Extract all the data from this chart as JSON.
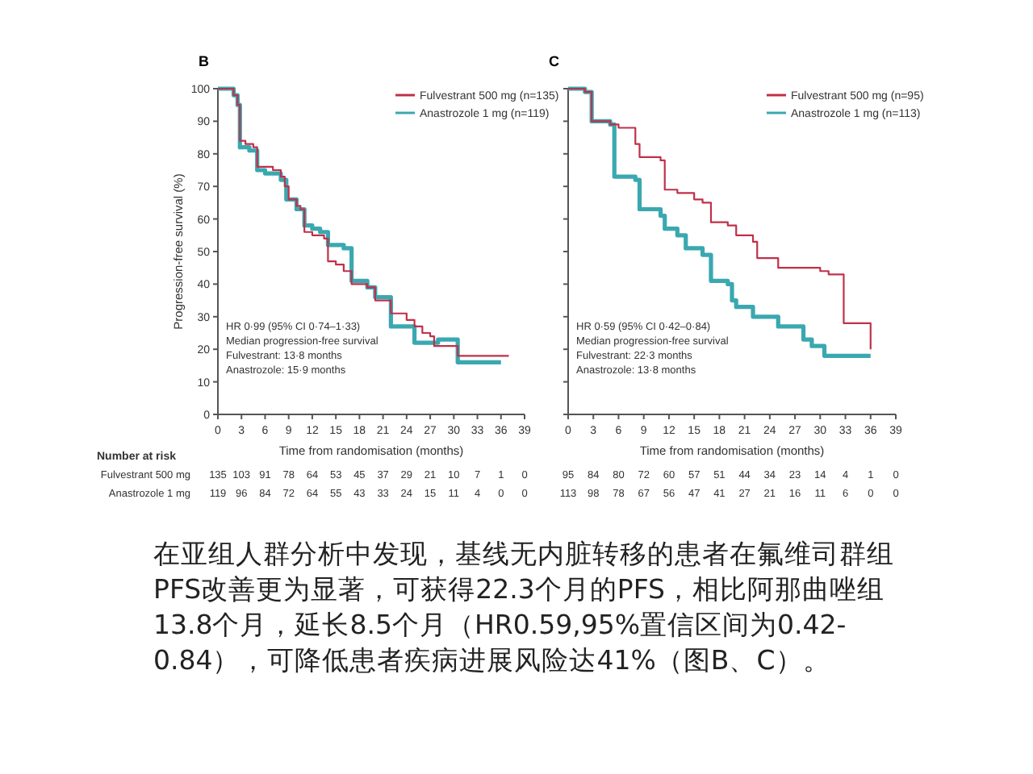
{
  "chart_data": [
    {
      "type": "step",
      "title": "B",
      "xlabel": "Time from randomisation (months)",
      "ylabel": "Progression-free survival (%)",
      "xlim": [
        0,
        39
      ],
      "xticks": [
        0,
        3,
        6,
        9,
        12,
        15,
        18,
        21,
        24,
        27,
        30,
        33,
        36,
        39
      ],
      "ylim": [
        0,
        100
      ],
      "yticks": [
        0,
        10,
        20,
        30,
        40,
        50,
        60,
        70,
        80,
        90,
        100
      ],
      "legend": "top right",
      "grid": false,
      "series": [
        {
          "name": "Fulvestrant 500 mg (n=135)",
          "color": "#c0304a",
          "x": [
            0,
            1.5,
            2,
            2.5,
            2.8,
            3.5,
            4.5,
            5,
            7,
            8,
            8.5,
            9,
            10,
            10.5,
            11,
            12,
            13.5,
            14,
            15,
            16,
            17,
            19,
            20,
            22,
            24,
            25,
            26,
            27,
            27.5,
            30.5,
            37
          ],
          "values": [
            100,
            100,
            98,
            95,
            84,
            83,
            82,
            76,
            75,
            73,
            70,
            66,
            64,
            63,
            56,
            55,
            54,
            47,
            46,
            44,
            40,
            39,
            35,
            31,
            29,
            27,
            25,
            24,
            21,
            18,
            18
          ]
        },
        {
          "name": "Anastrozole 1 mg (n=119)",
          "color": "#3aa8b0",
          "x": [
            0,
            2,
            2.5,
            2.8,
            4,
            5,
            6,
            8,
            8.7,
            10,
            11,
            12,
            13,
            14,
            16,
            17,
            19,
            20,
            22,
            25,
            27,
            28,
            30.5,
            36
          ],
          "values": [
            100,
            98,
            95,
            82,
            81,
            75,
            74,
            72,
            66,
            63,
            58,
            57,
            56,
            52,
            51,
            41,
            39,
            36,
            27,
            22,
            22,
            23,
            16,
            16
          ]
        }
      ],
      "annotations": [
        "HR 0·99 (95% CI 0·74–1·33)",
        "Median progression-free survival",
        "Fulvestrant: 13·8 months",
        "Anastrozole: 15·9 months",
        "Number at risk",
        "Fulvestrant 500 mg",
        "Anastrozole 1 mg",
        "135 103 91 78 64 53 45 37 29 21 10 7 1 0",
        "119 96 84 72 64 55 43 33 24 15 11 4 0 0"
      ]
    },
    {
      "type": "step",
      "title": "C",
      "xlabel": "Time from randomisation (months)",
      "xlim": [
        0,
        39
      ],
      "xticks": [
        0,
        3,
        6,
        9,
        12,
        15,
        18,
        21,
        24,
        27,
        30,
        33,
        36,
        39
      ],
      "ylim": [
        0,
        100
      ],
      "yticks": [
        0,
        10,
        20,
        30,
        40,
        50,
        60,
        70,
        80,
        90,
        100
      ],
      "tick_labels": "x",
      "legend": "top right",
      "grid": false,
      "series": [
        {
          "name": "Fulvestrant 500 mg (n=95)",
          "color": "#c0304a",
          "x": [
            0,
            2,
            2.8,
            5,
            6,
            8,
            8.5,
            11,
            11.5,
            13,
            15,
            16,
            17,
            19,
            20,
            22,
            22.5,
            25,
            30,
            31,
            32.8,
            36
          ],
          "values": [
            100,
            99,
            90,
            89,
            88,
            83,
            79,
            78,
            69,
            68,
            66,
            65,
            59,
            58,
            55,
            53,
            48,
            45,
            44,
            43,
            28,
            20
          ]
        },
        {
          "name": "Anastrozole 1 mg (n=113)",
          "color": "#3aa8b0",
          "x": [
            0,
            2,
            2.8,
            5,
            5.5,
            8,
            8.5,
            11,
            11.5,
            13,
            14,
            16,
            17,
            19,
            19.5,
            20,
            22,
            25,
            28,
            29,
            30.5,
            36
          ],
          "values": [
            100,
            99,
            90,
            89,
            73,
            72,
            63,
            61,
            57,
            55,
            51,
            49,
            41,
            40,
            35,
            33,
            30,
            27,
            23,
            21,
            18,
            18
          ]
        }
      ],
      "annotations": [
        "HR 0·59 (95% CI 0·42–0·84)",
        "Median progression-free survival",
        "Fulvestrant: 22·3 months",
        "Anastrozole: 13·8 months",
        "95 84 80 72 60 57 51 44 34 23 14 4 1 0",
        "113 98 78 67 56 47 41 27 21 16 11 6 0 0"
      ]
    },
    {
      "type": "other",
      "annotations": [
        "在亚组人群分析中发现，基线无内脏转移的患者在氟维司群组PFS改善更为显著，可获得22.3个月的PFS，相比阿那曲唑组13.8个月，延长8.5个月（HR0.59,95%置信区间为0.42-0.84），可降低患者疾病进展风险达41%（图B、C）。"
      ]
    }
  ]
}
